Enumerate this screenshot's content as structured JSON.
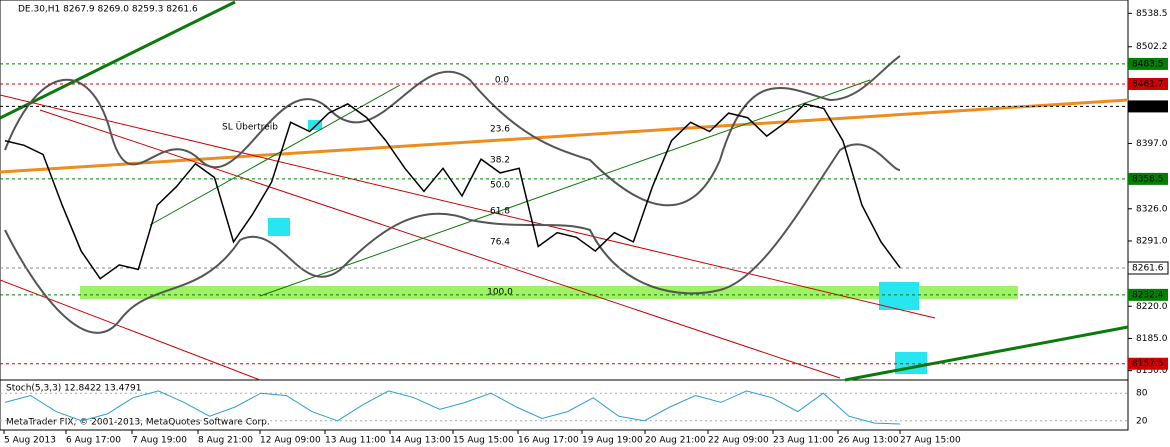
{
  "header": {
    "text": "DE.30,H1  8267.9 8269.0 8259.3 8261.6"
  },
  "chart_data": {
    "type": "line",
    "color": "#000000",
    "values": [
      8400,
      8395,
      8385,
      8330,
      8280,
      8250,
      8265,
      8260,
      8330,
      8350,
      8375,
      8360,
      8290,
      8320,
      8355,
      8420,
      8410,
      8430,
      8440,
      8425,
      8400,
      8370,
      8345,
      8370,
      8340,
      8380,
      8365,
      8370,
      8285,
      8300,
      8295,
      8280,
      8300,
      8290,
      8350,
      8400,
      8420,
      8410,
      8430,
      8425,
      8405,
      8420,
      8440,
      8435,
      8400,
      8330,
      8290,
      8262
    ],
    "ylim": [
      8142,
      8553
    ],
    "yticks": [
      {
        "value": 8538.5,
        "label": "8538.5"
      },
      {
        "value": 8502.2,
        "label": "8502.2"
      },
      {
        "value": 8397,
        "label": "8397.0"
      },
      {
        "value": 8326,
        "label": "8326.0"
      },
      {
        "value": 8291,
        "label": "8291.0"
      },
      {
        "value": 8220,
        "label": "8220.0"
      },
      {
        "value": 8185,
        "label": "8185.0"
      },
      {
        "value": 8150,
        "label": "8150.0"
      }
    ],
    "levels": [
      {
        "value": 8483.5,
        "color": "#008000"
      },
      {
        "value": 8461.7,
        "color": "#d00000"
      },
      {
        "value": 8437.3,
        "color": "#000000"
      },
      {
        "value": 8358.5,
        "color": "#008000"
      },
      {
        "value": 8261.6,
        "color": "#ffffff"
      },
      {
        "value": 8232.4,
        "color": "#008000"
      },
      {
        "value": 8157.5,
        "color": "#d00000"
      }
    ]
  },
  "annotation": "SL Übertreib",
  "fibo": [
    "0.0",
    "23.6",
    "38.2",
    "50.0",
    "61.8",
    "76.4",
    "100.0"
  ],
  "stochastic": {
    "title": "Stoch(5,3,3) 12.8422 13.4791",
    "color": "#2a9fd6",
    "values": [
      60,
      75,
      40,
      20,
      35,
      70,
      85,
      60,
      30,
      50,
      80,
      75,
      40,
      20,
      55,
      85,
      70,
      45,
      60,
      80,
      50,
      25,
      40,
      70,
      30,
      20,
      50,
      75,
      60,
      85,
      70,
      40,
      80,
      30,
      15,
      13
    ],
    "ylim": [
      0,
      100
    ],
    "yticks": [
      80,
      20
    ]
  },
  "footer": "MetaTrader FIX, © 2001-2013, MetaQuotes Software Corp.",
  "time_axis": [
    "5 Aug 2013",
    "6 Aug 17:00",
    "7 Aug 19:00",
    "8 Aug 21:00",
    "12 Aug 09:00",
    "13 Aug 11:00",
    "14 Aug 13:00",
    "15 Aug 15:00",
    "16 Aug 17:00",
    "19 Aug 19:00",
    "20 Aug 21:00",
    "22 Aug 09:00",
    "23 Aug 11:00",
    "26 Aug 13:00",
    "27 Aug 15:00"
  ]
}
